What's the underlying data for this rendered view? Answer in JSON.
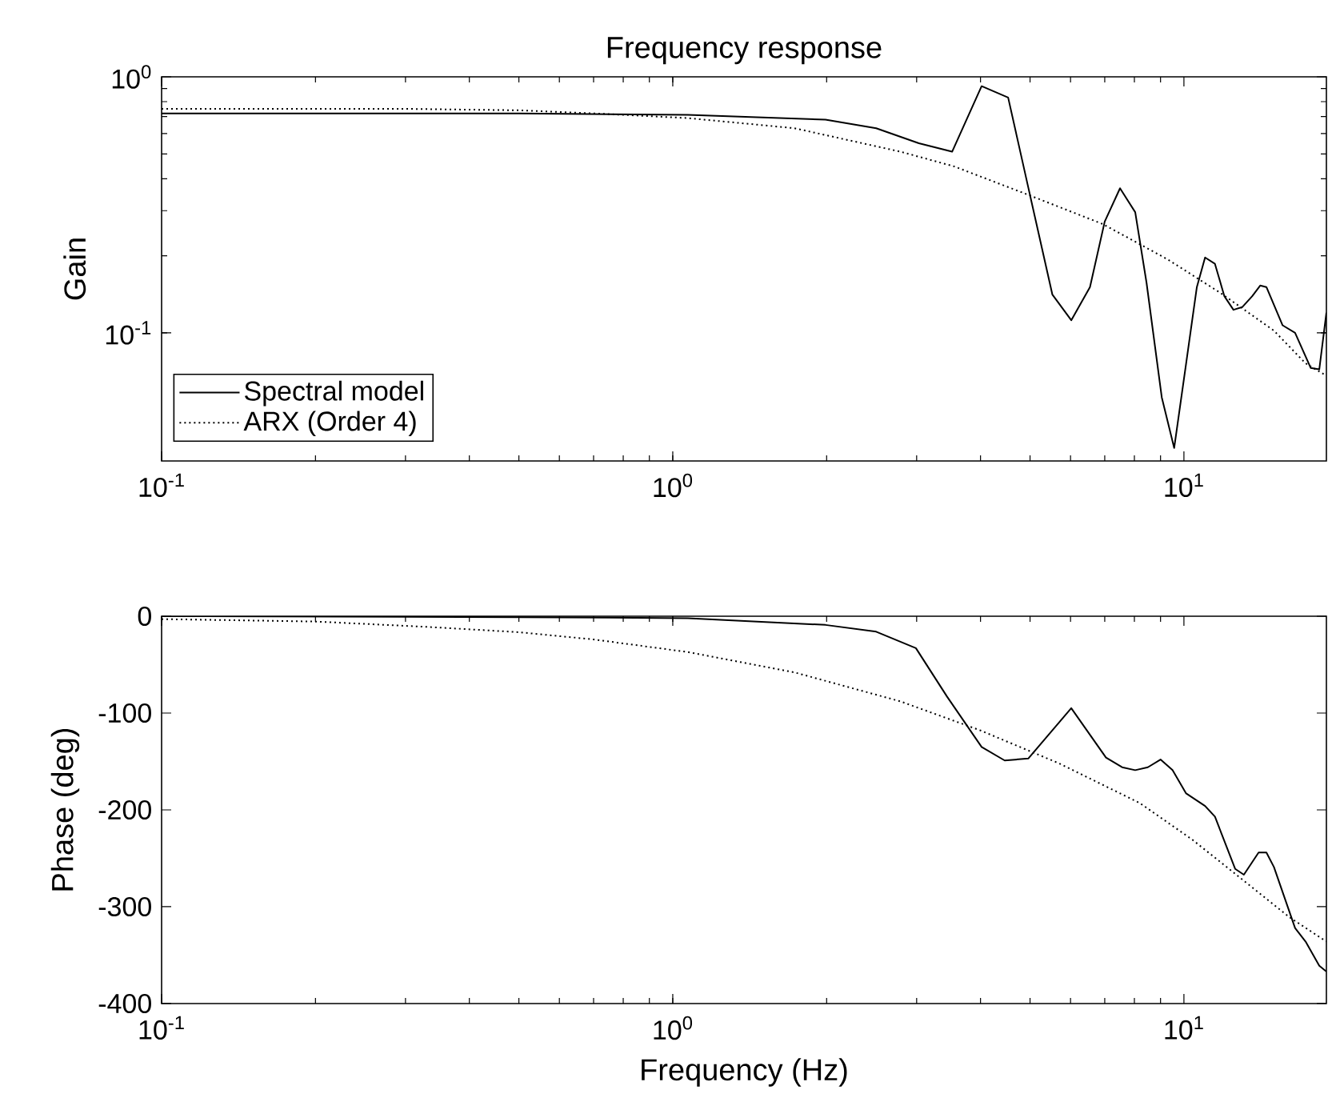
{
  "chart_data": [
    {
      "type": "line",
      "title": "Frequency response",
      "ylabel": "Gain",
      "log": "xy",
      "legend": "bottom left",
      "xlim": [
        0.1,
        19
      ],
      "xticks": [
        {
          "value": 0.1,
          "label": "10$^{-1}$"
        },
        {
          "value": 1,
          "label": "10$^{0}$"
        },
        {
          "value": 10,
          "label": "10$^{1}$"
        }
      ],
      "ylim": [
        0.0316,
        1
      ],
      "yticks": [
        {
          "value": 0.1,
          "label": "10$^{-1}$"
        },
        {
          "value": 1,
          "label": "10$^{0}$"
        }
      ],
      "series": [
        {
          "name": "Spectral model",
          "color": "#000000",
          "line_style": "solid",
          "x": [
            0.1,
            0.5,
            1.07,
            1.99,
            2.5,
            3.03,
            3.52,
            4.02,
            4.53,
            4.96,
            5.53,
            6.02,
            6.55,
            7.0,
            7.5,
            8.03,
            8.45,
            9.05,
            9.57,
            10.1,
            10.6,
            11.0,
            11.5,
            12.0,
            12.5,
            13.0,
            13.6,
            14.1,
            14.5,
            15.6,
            16.5,
            17.7,
            18.4,
            19.0
          ],
          "values": [
            0.72,
            0.72,
            0.71,
            0.68,
            0.63,
            0.55,
            0.51,
            0.92,
            0.83,
            0.37,
            0.141,
            0.112,
            0.151,
            0.272,
            0.367,
            0.296,
            0.157,
            0.056,
            0.0355,
            0.076,
            0.151,
            0.197,
            0.186,
            0.139,
            0.123,
            0.126,
            0.139,
            0.153,
            0.151,
            0.107,
            0.1,
            0.073,
            0.072,
            0.12
          ]
        },
        {
          "name": "ARX (Order 4)",
          "color": "#000000",
          "line_style": "dotted",
          "x": [
            0.1,
            0.3,
            0.5,
            0.7,
            1.07,
            1.73,
            2.79,
            3.55,
            4.96,
            6.94,
            9.28,
            11.8,
            15.0,
            17.3,
            19.0
          ],
          "values": [
            0.75,
            0.75,
            0.74,
            0.72,
            0.69,
            0.63,
            0.51,
            0.447,
            0.346,
            0.266,
            0.194,
            0.143,
            0.102,
            0.076,
            0.068
          ]
        }
      ]
    },
    {
      "type": "line",
      "xlabel": "Frequency (Hz)",
      "ylabel": "Phase (deg)",
      "log": "x",
      "xlim": [
        0.1,
        19
      ],
      "xticks": [
        {
          "value": 0.1,
          "label": "10$^{-1}$"
        },
        {
          "value": 1,
          "label": "10$^{0}$"
        },
        {
          "value": 10,
          "label": "10$^{1}$"
        }
      ],
      "ylim": [
        -400,
        0
      ],
      "yticks": [
        -400,
        -300,
        -200,
        -100,
        0
      ],
      "series": [
        {
          "color": "#000000",
          "line_style": "solid",
          "x": [
            0.1,
            0.5,
            1.07,
            1.99,
            2.5,
            2.99,
            3.44,
            4.02,
            4.46,
            4.96,
            6.02,
            7.04,
            7.57,
            8.03,
            8.5,
            9.0,
            9.5,
            10.1,
            11.0,
            11.5,
            12.6,
            13.1,
            14.0,
            14.5,
            15.0,
            16.5,
            17.3,
            18.4,
            19.0
          ],
          "values": [
            0,
            -1,
            -2,
            -9,
            -16,
            -33,
            -83,
            -135,
            -149,
            -147,
            -95,
            -146,
            -156,
            -159,
            -156,
            -148,
            -159,
            -183,
            -196,
            -207,
            -261,
            -267,
            -244,
            -244,
            -259,
            -322,
            -336,
            -361,
            -367
          ]
        },
        {
          "color": "#000000",
          "line_style": "dotted",
          "x": [
            0.1,
            0.2,
            0.33,
            0.5,
            0.7,
            1.07,
            1.73,
            2.79,
            4.0,
            5.7,
            8.2,
            10.4,
            13.3,
            16.1,
            19.0
          ],
          "values": [
            -3,
            -5.5,
            -11,
            -16.5,
            -24,
            -37,
            -58,
            -88,
            -118,
            -152,
            -193,
            -231,
            -276,
            -311,
            -336
          ]
        }
      ]
    }
  ]
}
